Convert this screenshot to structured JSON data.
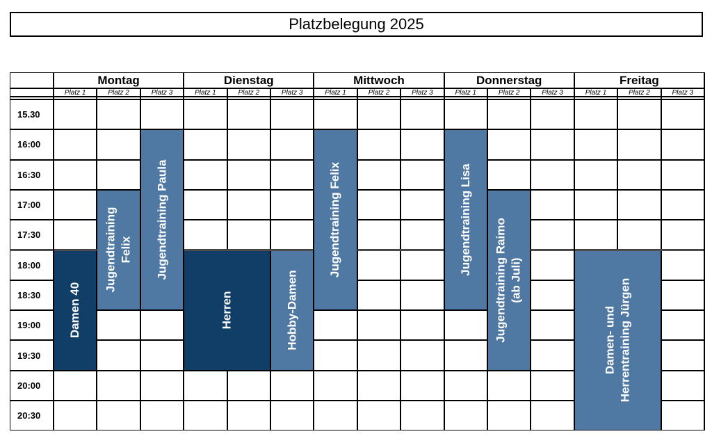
{
  "title": "Platzbelegung 2025",
  "days": [
    "Montag",
    "Dienstag",
    "Mittwoch",
    "Donnerstag",
    "Freitag"
  ],
  "platz_labels": [
    "Platz 1",
    "Platz 2",
    "Platz 3"
  ],
  "times": [
    "15.30",
    "16:00",
    "16:30",
    "17:00",
    "17:30",
    "18:00",
    "18:30",
    "19:00",
    "19:30",
    "20:00",
    "20:30"
  ],
  "colors": {
    "dark": "#103e67",
    "light": "#4f78a2"
  },
  "bookings": [
    {
      "label": "Damen 40",
      "day": 0,
      "platz_start": 0,
      "platz_span": 1,
      "start": "18:00",
      "end": "20:00",
      "tone": "dark"
    },
    {
      "label": "Jugendtraining\nFelix",
      "day": 0,
      "platz_start": 1,
      "platz_span": 1,
      "start": "17:00",
      "end": "19:00",
      "tone": "light"
    },
    {
      "label": "Jugendtraining Paula",
      "day": 0,
      "platz_start": 2,
      "platz_span": 1,
      "start": "16:00",
      "end": "19:00",
      "tone": "light"
    },
    {
      "label": "Herren",
      "day": 1,
      "platz_start": 0,
      "platz_span": 2,
      "start": "18:00",
      "end": "20:00",
      "tone": "dark"
    },
    {
      "label": "Hobby-Damen",
      "day": 1,
      "platz_start": 2,
      "platz_span": 1,
      "start": "18:00",
      "end": "20:00",
      "tone": "light"
    },
    {
      "label": "Jugendtraining Felix",
      "day": 2,
      "platz_start": 0,
      "platz_span": 1,
      "start": "16:00",
      "end": "19:00",
      "tone": "light"
    },
    {
      "label": "Jugendtraining Lisa",
      "day": 3,
      "platz_start": 0,
      "platz_span": 1,
      "start": "16:00",
      "end": "19:00",
      "tone": "light"
    },
    {
      "label": "Jugendtraining Raimo\n(ab Juli)",
      "day": 3,
      "platz_start": 1,
      "platz_span": 1,
      "start": "17:00",
      "end": "20:00",
      "tone": "light"
    },
    {
      "label": "Damen- und\nHerrentraining Jürgen",
      "day": 4,
      "platz_start": 0,
      "platz_span": 2,
      "start": "18:00",
      "end": "21:00",
      "tone": "light"
    }
  ]
}
